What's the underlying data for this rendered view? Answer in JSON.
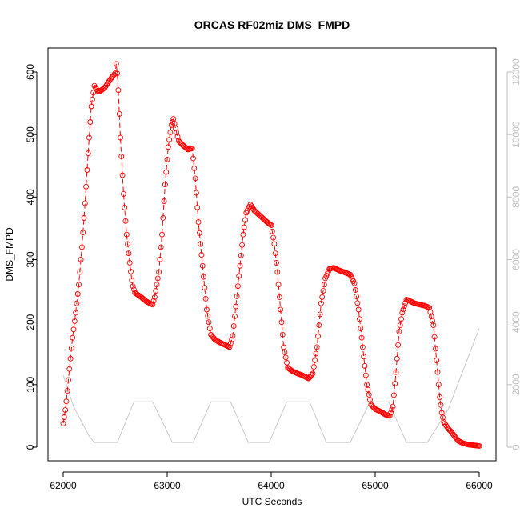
{
  "chart_data": {
    "type": "scatter",
    "title": "ORCAS RF02miz DMS_FMPD",
    "xlabel": "UTC Seconds",
    "ylabel": "DMS_FMPD",
    "y2label": "",
    "xlim": [
      62000,
      66000
    ],
    "ylim": [
      0,
      620
    ],
    "y2lim": [
      0,
      12300
    ],
    "x_ticks": [
      62000,
      63000,
      64000,
      65000,
      66000
    ],
    "y_ticks": [
      0,
      100,
      200,
      300,
      400,
      500,
      600
    ],
    "y2_ticks": [
      0,
      2000,
      4000,
      6000,
      8000,
      10000,
      12000
    ],
    "grid": false,
    "colors": {
      "dms": "#ff0000",
      "altitude": "#c8c8c8",
      "axis_right": "#bfbfbf"
    },
    "series": [
      {
        "axis": "left",
        "style": "points-with-dashed-line",
        "anchors": [
          [
            62000,
            38
          ],
          [
            62010,
            48
          ],
          [
            62025,
            65
          ],
          [
            62040,
            90
          ],
          [
            62060,
            125
          ],
          [
            62090,
            175
          ],
          [
            62120,
            215
          ],
          [
            62150,
            260
          ],
          [
            62180,
            320
          ],
          [
            62210,
            390
          ],
          [
            62240,
            470
          ],
          [
            62270,
            545
          ],
          [
            62300,
            578
          ],
          [
            62330,
            570
          ],
          [
            62360,
            570
          ],
          [
            62400,
            575
          ],
          [
            62440,
            585
          ],
          [
            62470,
            592
          ],
          [
            62500,
            598
          ],
          [
            62510,
            613
          ],
          [
            62525,
            590
          ],
          [
            62550,
            495
          ],
          [
            62580,
            405
          ],
          [
            62610,
            340
          ],
          [
            62640,
            295
          ],
          [
            62665,
            260
          ],
          [
            62690,
            247
          ],
          [
            62750,
            240
          ],
          [
            62800,
            233
          ],
          [
            62860,
            228
          ],
          [
            62880,
            240
          ],
          [
            62920,
            280
          ],
          [
            62950,
            340
          ],
          [
            62980,
            420
          ],
          [
            63010,
            480
          ],
          [
            63040,
            515
          ],
          [
            63060,
            525
          ],
          [
            63080,
            510
          ],
          [
            63110,
            490
          ],
          [
            63150,
            483
          ],
          [
            63200,
            476
          ],
          [
            63240,
            478
          ],
          [
            63270,
            430
          ],
          [
            63300,
            360
          ],
          [
            63340,
            290
          ],
          [
            63380,
            220
          ],
          [
            63420,
            180
          ],
          [
            63460,
            172
          ],
          [
            63500,
            168
          ],
          [
            63550,
            164
          ],
          [
            63600,
            160
          ],
          [
            63630,
            178
          ],
          [
            63660,
            225
          ],
          [
            63700,
            290
          ],
          [
            63730,
            340
          ],
          [
            63760,
            375
          ],
          [
            63800,
            388
          ],
          [
            63840,
            378
          ],
          [
            63880,
            372
          ],
          [
            63920,
            366
          ],
          [
            63960,
            360
          ],
          [
            64000,
            355
          ],
          [
            64030,
            325
          ],
          [
            64060,
            280
          ],
          [
            64090,
            220
          ],
          [
            64120,
            160
          ],
          [
            64160,
            127
          ],
          [
            64200,
            122
          ],
          [
            64250,
            118
          ],
          [
            64300,
            115
          ],
          [
            64360,
            110
          ],
          [
            64400,
            118
          ],
          [
            64440,
            160
          ],
          [
            64480,
            230
          ],
          [
            64520,
            270
          ],
          [
            64560,
            285
          ],
          [
            64600,
            287
          ],
          [
            64650,
            283
          ],
          [
            64700,
            280
          ],
          [
            64760,
            276
          ],
          [
            64800,
            262
          ],
          [
            64840,
            220
          ],
          [
            64880,
            160
          ],
          [
            64920,
            100
          ],
          [
            64960,
            68
          ],
          [
            65000,
            61
          ],
          [
            65050,
            57
          ],
          [
            65100,
            52
          ],
          [
            65140,
            50
          ],
          [
            65170,
            65
          ],
          [
            65200,
            120
          ],
          [
            65230,
            185
          ],
          [
            65260,
            215
          ],
          [
            65300,
            236
          ],
          [
            65330,
            234
          ],
          [
            65380,
            230
          ],
          [
            65430,
            228
          ],
          [
            65480,
            226
          ],
          [
            65520,
            223
          ],
          [
            65560,
            195
          ],
          [
            65600,
            120
          ],
          [
            65620,
            80
          ],
          [
            65640,
            55
          ],
          [
            65660,
            40
          ],
          [
            65700,
            30
          ],
          [
            65730,
            25
          ],
          [
            65760,
            18
          ],
          [
            65800,
            10
          ],
          [
            65850,
            6
          ],
          [
            65900,
            4
          ],
          [
            65950,
            3
          ],
          [
            66000,
            2
          ]
        ]
      },
      {
        "axis": "right",
        "style": "line",
        "x": [
          62000,
          62100,
          62250,
          62300,
          62520,
          62680,
          62860,
          63050,
          63250,
          63420,
          63610,
          63780,
          63980,
          64150,
          64370,
          64530,
          64760,
          64950,
          65130,
          65300,
          65500,
          65700,
          66000
        ],
        "y": [
          2300,
          1300,
          350,
          150,
          150,
          1450,
          1450,
          150,
          150,
          1450,
          1450,
          150,
          150,
          1450,
          1450,
          150,
          150,
          1450,
          1450,
          150,
          150,
          1200,
          3800
        ]
      }
    ]
  }
}
